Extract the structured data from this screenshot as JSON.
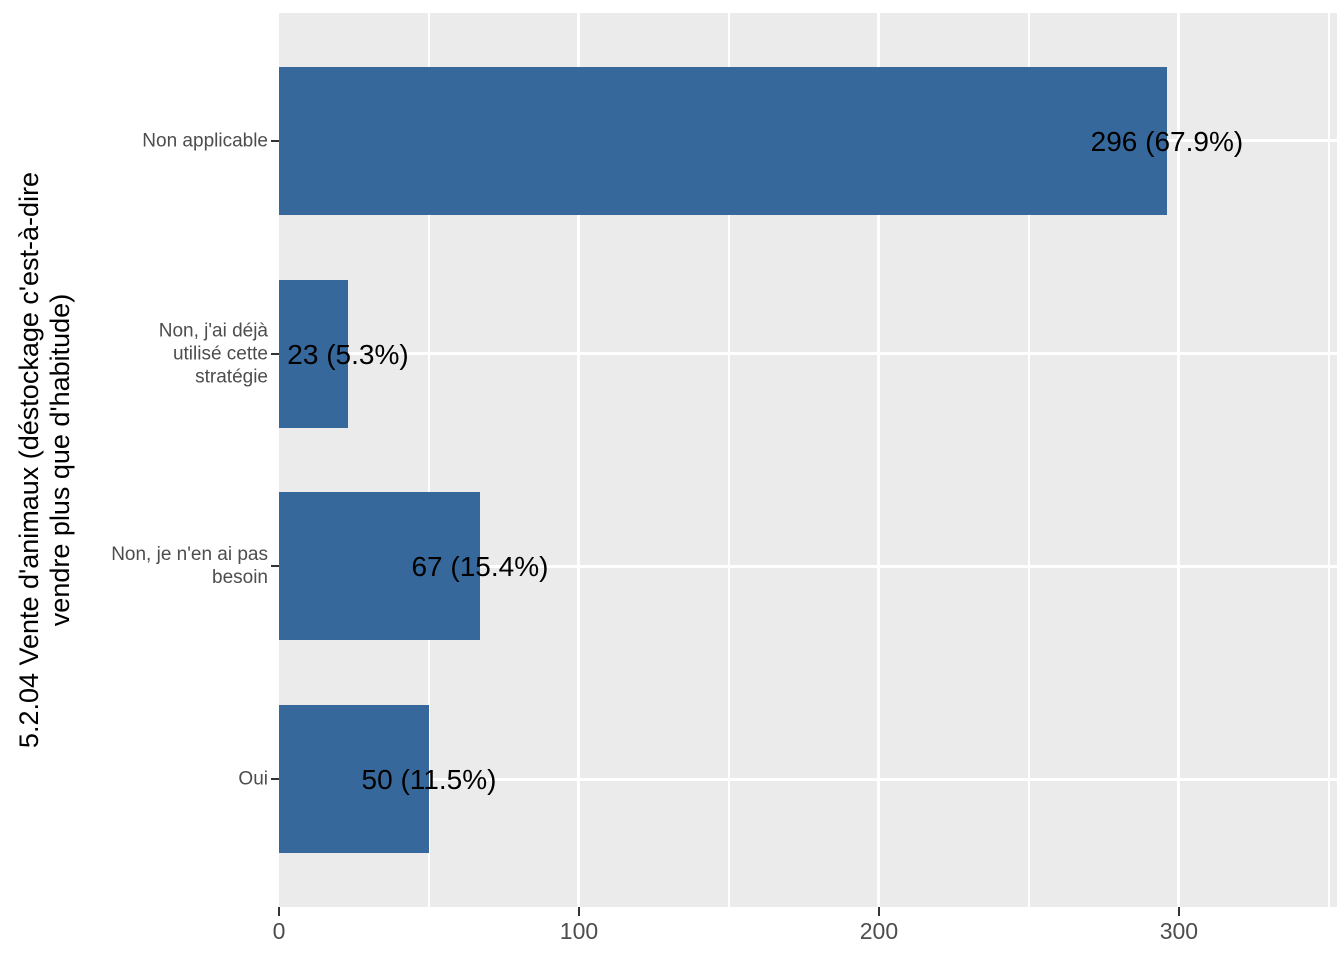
{
  "chart_data": {
    "type": "bar",
    "orientation": "horizontal",
    "title": "",
    "xlabel": "",
    "ylabel": "5.2.04 Vente d'animaux (déstockage c'est-à-dire vendre plus que d'habitude)",
    "ylabel_lines": [
      "5.2.04 Vente d'animaux (déstockage c'est-à-dire",
      "vendre plus que d'habitude)"
    ],
    "categories": [
      "Non applicable",
      "Non, j'ai déjà utilisé cette stratégie",
      "Non, je n'en ai pas besoin",
      "Oui"
    ],
    "category_lines": [
      [
        "Non applicable"
      ],
      [
        "Non, j'ai déjà",
        "utilisé cette",
        "stratégie"
      ],
      [
        "Non, je n'en ai pas",
        "besoin"
      ],
      [
        "Oui"
      ]
    ],
    "values": [
      296,
      23,
      67,
      50
    ],
    "percents": [
      67.9,
      5.3,
      15.4,
      11.5
    ],
    "bar_labels": [
      "296 (67.9%)",
      "23 (5.3%)",
      "67 (15.4%)",
      "50 (11.5%)"
    ],
    "x_ticks": [
      "0",
      "100",
      "200",
      "300"
    ],
    "x_tick_values": [
      0,
      100,
      200,
      300
    ],
    "x_minor_values": [
      50,
      150,
      250,
      350
    ],
    "xlim": [
      0,
      352.7
    ],
    "grid": true,
    "legend_position": "none",
    "colors": {
      "bar": "#36689B",
      "panel_bg": "#EBEBEB",
      "grid": "#FFFFFF",
      "axis_text": "#4D4D4D",
      "bar_label": "#000000",
      "axis_title": "#000000",
      "tick_mark": "#333333",
      "background": "#FFFFFF"
    }
  }
}
